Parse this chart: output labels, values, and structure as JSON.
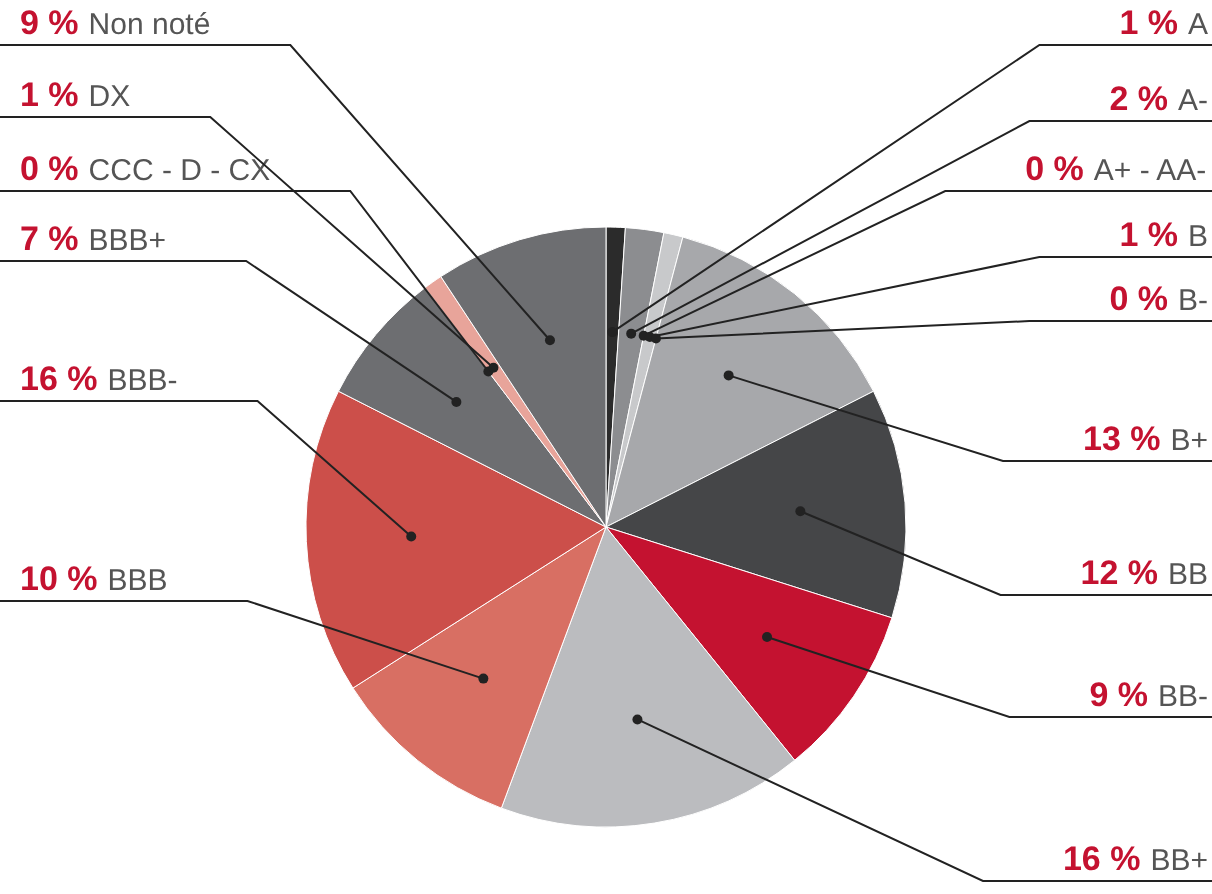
{
  "chart_data": {
    "type": "pie",
    "categories": [
      "A",
      "A-",
      "A+ - AA-",
      "B",
      "B-",
      "B+",
      "BB",
      "BB-",
      "BB+",
      "BBB",
      "BBB-",
      "BBB+",
      "CCC - D - CX",
      "DX",
      "Non noté"
    ],
    "values": [
      1,
      2,
      0,
      1,
      0,
      13,
      12,
      9,
      16,
      10,
      16,
      7,
      0,
      1,
      9
    ],
    "value_labels": [
      "1 %",
      "2 %",
      "0 %",
      "1 %",
      "0 %",
      "13 %",
      "12 %",
      "9 %",
      "16 %",
      "10 %",
      "16 %",
      "7 %",
      "0 %",
      "1 %",
      "9 %"
    ],
    "colors": [
      "#2b2b2b",
      "#8c8d90",
      "#a0a0a0",
      "#c8c9cb",
      "#d0d0d0",
      "#a7a8ab",
      "#454648",
      "#c41230",
      "#bbbcbf",
      "#d86f63",
      "#cc4f4a",
      "#6d6e71",
      "#b0b0b0",
      "#e8a49a",
      "#6d6e71"
    ],
    "legend": false
  }
}
